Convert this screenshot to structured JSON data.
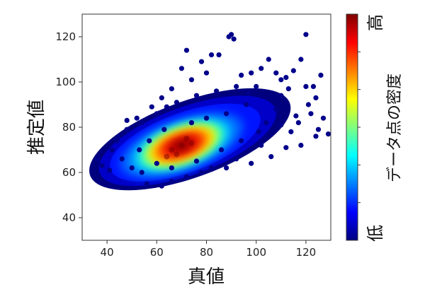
{
  "chart_data": {
    "type": "scatter",
    "title": "",
    "xlabel": "真値",
    "ylabel": "推定値",
    "xlim": [
      30,
      130
    ],
    "ylim": [
      30,
      130
    ],
    "xticks": [
      40,
      60,
      80,
      100,
      120
    ],
    "yticks": [
      40,
      60,
      80,
      100,
      120
    ],
    "grid": false,
    "point_color_map": "jet",
    "colorbar": {
      "title": "データ点の密度",
      "high_label": "高",
      "low_label": "低",
      "colors": [
        "#00007f",
        "#0000ff",
        "#007fff",
        "#00ffff",
        "#7fff7f",
        "#ffff00",
        "#ff7f00",
        "#ff0000",
        "#7f0000"
      ]
    },
    "density_center": [
      70,
      72
    ],
    "density_core": [
      {
        "x": 66,
        "y": 70
      },
      {
        "x": 70,
        "y": 72
      },
      {
        "x": 74,
        "y": 73
      },
      {
        "x": 68,
        "y": 68
      },
      {
        "x": 72,
        "y": 75
      },
      {
        "x": 64,
        "y": 67
      }
    ],
    "outlier_points": [
      {
        "x": 36,
        "y": 66
      },
      {
        "x": 38,
        "y": 63
      },
      {
        "x": 41,
        "y": 61
      },
      {
        "x": 45,
        "y": 76
      },
      {
        "x": 48,
        "y": 83
      },
      {
        "x": 52,
        "y": 84
      },
      {
        "x": 58,
        "y": 89
      },
      {
        "x": 62,
        "y": 93
      },
      {
        "x": 64,
        "y": 89
      },
      {
        "x": 66,
        "y": 97
      },
      {
        "x": 70,
        "y": 106
      },
      {
        "x": 72,
        "y": 114
      },
      {
        "x": 74,
        "y": 101
      },
      {
        "x": 78,
        "y": 109
      },
      {
        "x": 80,
        "y": 104
      },
      {
        "x": 82,
        "y": 112
      },
      {
        "x": 85,
        "y": 112
      },
      {
        "x": 89,
        "y": 120
      },
      {
        "x": 90,
        "y": 121
      },
      {
        "x": 91,
        "y": 119
      },
      {
        "x": 94,
        "y": 103
      },
      {
        "x": 98,
        "y": 104
      },
      {
        "x": 102,
        "y": 106
      },
      {
        "x": 105,
        "y": 110
      },
      {
        "x": 108,
        "y": 104
      },
      {
        "x": 110,
        "y": 101
      },
      {
        "x": 112,
        "y": 102
      },
      {
        "x": 115,
        "y": 105
      },
      {
        "x": 118,
        "y": 110
      },
      {
        "x": 120,
        "y": 98
      },
      {
        "x": 120,
        "y": 121
      },
      {
        "x": 123,
        "y": 98
      },
      {
        "x": 126,
        "y": 103
      },
      {
        "x": 124,
        "y": 93
      },
      {
        "x": 127,
        "y": 84
      },
      {
        "x": 125,
        "y": 79
      },
      {
        "x": 129,
        "y": 77
      },
      {
        "x": 124,
        "y": 76
      },
      {
        "x": 118,
        "y": 72
      },
      {
        "x": 112,
        "y": 71
      },
      {
        "x": 106,
        "y": 67
      },
      {
        "x": 98,
        "y": 64
      },
      {
        "x": 88,
        "y": 62
      },
      {
        "x": 78,
        "y": 60
      },
      {
        "x": 66,
        "y": 56
      },
      {
        "x": 56,
        "y": 55
      },
      {
        "x": 62,
        "y": 54
      },
      {
        "x": 72,
        "y": 58
      },
      {
        "x": 82,
        "y": 62
      },
      {
        "x": 92,
        "y": 66
      },
      {
        "x": 102,
        "y": 72
      },
      {
        "x": 114,
        "y": 78
      },
      {
        "x": 116,
        "y": 85
      },
      {
        "x": 121,
        "y": 90
      },
      {
        "x": 110,
        "y": 94
      },
      {
        "x": 100,
        "y": 98
      },
      {
        "x": 92,
        "y": 98
      },
      {
        "x": 84,
        "y": 96
      },
      {
        "x": 76,
        "y": 94
      },
      {
        "x": 68,
        "y": 91
      },
      {
        "x": 60,
        "y": 86
      },
      {
        "x": 54,
        "y": 82
      },
      {
        "x": 48,
        "y": 79
      },
      {
        "x": 44,
        "y": 74
      },
      {
        "x": 42,
        "y": 70
      },
      {
        "x": 46,
        "y": 66
      },
      {
        "x": 50,
        "y": 62
      },
      {
        "x": 54,
        "y": 60
      },
      {
        "x": 104,
        "y": 82
      },
      {
        "x": 108,
        "y": 88
      },
      {
        "x": 96,
        "y": 90
      },
      {
        "x": 88,
        "y": 86
      },
      {
        "x": 80,
        "y": 84
      },
      {
        "x": 74,
        "y": 82
      },
      {
        "x": 63,
        "y": 79
      },
      {
        "x": 57,
        "y": 74
      },
      {
        "x": 53,
        "y": 70
      },
      {
        "x": 60,
        "y": 64
      },
      {
        "x": 66,
        "y": 62
      },
      {
        "x": 76,
        "y": 65
      },
      {
        "x": 86,
        "y": 70
      },
      {
        "x": 94,
        "y": 74
      },
      {
        "x": 101,
        "y": 78
      },
      {
        "x": 110,
        "y": 81
      },
      {
        "x": 117,
        "y": 82
      },
      {
        "x": 122,
        "y": 86
      },
      {
        "x": 113,
        "y": 97
      },
      {
        "x": 97,
        "y": 95
      }
    ]
  }
}
